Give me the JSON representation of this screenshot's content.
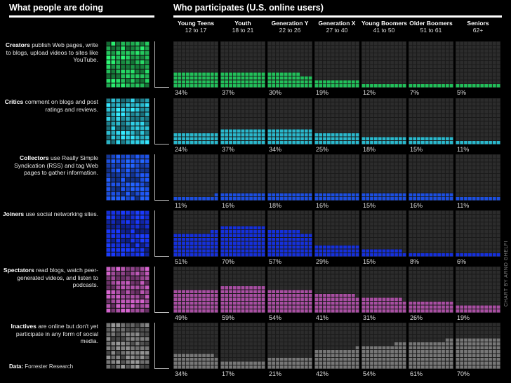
{
  "header_left": "What people are doing",
  "header_right": "Who participates (U.S. online users)",
  "source_label": "Data:",
  "source_value": "Forrester Research",
  "credit": "CHART BY ARNO GHELFI",
  "chart_data": {
    "type": "bar",
    "categories": [
      {
        "name": "Young Teens",
        "ages": "12 to 17"
      },
      {
        "name": "Youth",
        "ages": "18 to 21"
      },
      {
        "name": "Generation Y",
        "ages": "22 to 26"
      },
      {
        "name": "Generation X",
        "ages": "27 to 40"
      },
      {
        "name": "Young Boomers",
        "ages": "41 to 50"
      },
      {
        "name": "Older Boomers",
        "ages": "51 to 61"
      },
      {
        "name": "Seniors",
        "ages": "62+"
      }
    ],
    "ylim": [
      0,
      100
    ],
    "rows": [
      {
        "key": "creators",
        "term": "Creators",
        "desc": "publish Web pages, write to blogs, upload videos to sites like YouTube.",
        "color": "#22c05a",
        "values": [
          34,
          37,
          30,
          19,
          12,
          7,
          5
        ],
        "labels": [
          "34%",
          "37%",
          "30%",
          "19%",
          "12%",
          "7%",
          "5%"
        ]
      },
      {
        "key": "critics",
        "term": "Critics",
        "desc": "comment on blogs and post ratings and reviews.",
        "color": "#2ab8cc",
        "values": [
          24,
          37,
          34,
          25,
          18,
          15,
          11
        ],
        "labels": [
          "24%",
          "37%",
          "34%",
          "25%",
          "18%",
          "15%",
          "11%"
        ]
      },
      {
        "key": "collectors",
        "term": "Collectors",
        "desc": "use Really Simple Syndication (RSS) and tag Web pages to gather information.",
        "color": "#1c4fe0",
        "values": [
          11,
          16,
          18,
          16,
          15,
          16,
          11
        ],
        "labels": [
          "11%",
          "16%",
          "18%",
          "16%",
          "15%",
          "16%",
          "11%"
        ]
      },
      {
        "key": "joiners",
        "term": "Joiners",
        "desc": "use social networking sites.",
        "color": "#1530dc",
        "values": [
          51,
          70,
          57,
          29,
          15,
          8,
          6
        ],
        "labels": [
          "51%",
          "70%",
          "57%",
          "29%",
          "15%",
          "8%",
          "6%"
        ]
      },
      {
        "key": "spectators",
        "term": "Spectators",
        "desc": "read blogs, watch peer-generated videos, and listen to podcasts.",
        "color": "#a84ea2",
        "values": [
          49,
          59,
          54,
          41,
          31,
          26,
          19
        ],
        "labels": [
          "49%",
          "59%",
          "54%",
          "41%",
          "31%",
          "26%",
          "19%"
        ]
      },
      {
        "key": "inactives",
        "term": "Inactives",
        "desc": "are online but don't yet participate in any form of social media.",
        "color": "#777777",
        "values": [
          34,
          17,
          21,
          42,
          54,
          61,
          70
        ],
        "labels": [
          "34%",
          "17%",
          "21%",
          "42%",
          "54%",
          "61%",
          "70%"
        ]
      }
    ]
  }
}
